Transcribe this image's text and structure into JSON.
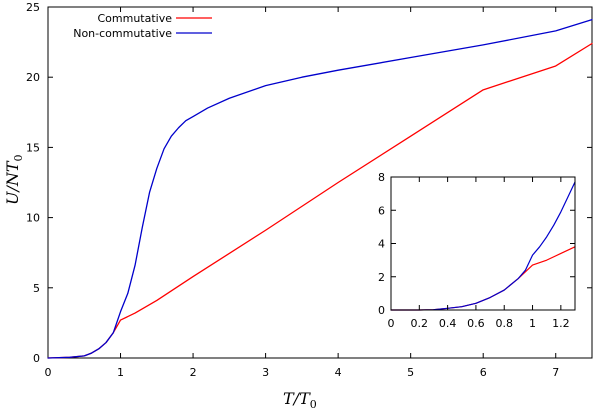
{
  "chart_data": [
    {
      "type": "line",
      "xlabel": "T/T0",
      "xlabel_main": "T",
      "xlabel_sep": "/",
      "xlabel_T": "T",
      "xlabel_sub": "0",
      "ylabel": "U/NT0",
      "ylabel_main": "U",
      "ylabel_sep": "/",
      "ylabel_NT": "NT",
      "ylabel_sub": "0",
      "xlim": [
        0,
        7.5
      ],
      "ylim": [
        0,
        25
      ],
      "xticks": [
        "0",
        "1",
        "2",
        "3",
        "4",
        "5",
        "6",
        "7"
      ],
      "yticks": [
        "0",
        "5",
        "10",
        "15",
        "20",
        "25"
      ],
      "legend_position": "top-left",
      "series": [
        {
          "name": "Commutative",
          "color": "#ff0000",
          "x": [
            0,
            0.3,
            0.5,
            0.6,
            0.7,
            0.8,
            0.9,
            1.0,
            1.2,
            1.5,
            2.0,
            3.0,
            4.0,
            5.0,
            6.0,
            7.0,
            7.5
          ],
          "y": [
            0,
            0.05,
            0.15,
            0.35,
            0.65,
            1.1,
            1.8,
            2.7,
            3.2,
            4.1,
            5.8,
            9.1,
            12.5,
            15.8,
            19.1,
            20.8,
            22.4
          ]
        },
        {
          "name": "Non-commutative",
          "color": "#0000cc",
          "x": [
            0,
            0.3,
            0.5,
            0.6,
            0.7,
            0.8,
            0.9,
            1.0,
            1.1,
            1.2,
            1.3,
            1.4,
            1.5,
            1.6,
            1.7,
            1.8,
            1.9,
            2.0,
            2.2,
            2.5,
            3.0,
            3.5,
            4.0,
            5.0,
            6.0,
            7.0,
            7.5
          ],
          "y": [
            0,
            0.05,
            0.15,
            0.35,
            0.65,
            1.1,
            1.8,
            3.3,
            4.6,
            6.6,
            9.3,
            11.8,
            13.5,
            14.9,
            15.8,
            16.4,
            16.9,
            17.2,
            17.8,
            18.5,
            19.4,
            20.0,
            20.5,
            21.4,
            22.3,
            23.3,
            24.1
          ]
        }
      ]
    },
    {
      "type": "line",
      "inset": true,
      "xlim": [
        0,
        1.3
      ],
      "ylim": [
        0,
        8
      ],
      "xticks": [
        "0",
        "0.2",
        "0.4",
        "0.6",
        "0.8",
        "1",
        "1.2"
      ],
      "yticks": [
        "0",
        "2",
        "4",
        "6",
        "8"
      ],
      "series": [
        {
          "color": "#ff0000",
          "x": [
            0,
            0.2,
            0.3,
            0.4,
            0.5,
            0.6,
            0.7,
            0.8,
            0.9,
            1.0,
            1.1,
            1.2,
            1.3
          ],
          "y": [
            0,
            0,
            0.02,
            0.1,
            0.2,
            0.4,
            0.75,
            1.2,
            1.9,
            2.7,
            3.0,
            3.4,
            3.8
          ]
        },
        {
          "color": "#0000cc",
          "x": [
            0,
            0.2,
            0.3,
            0.4,
            0.5,
            0.6,
            0.7,
            0.8,
            0.9,
            0.95,
            1.0,
            1.05,
            1.1,
            1.15,
            1.2,
            1.25,
            1.3
          ],
          "y": [
            0,
            0,
            0.02,
            0.1,
            0.2,
            0.4,
            0.75,
            1.2,
            1.9,
            2.4,
            3.3,
            3.8,
            4.4,
            5.1,
            5.9,
            6.8,
            7.7
          ]
        }
      ]
    }
  ]
}
